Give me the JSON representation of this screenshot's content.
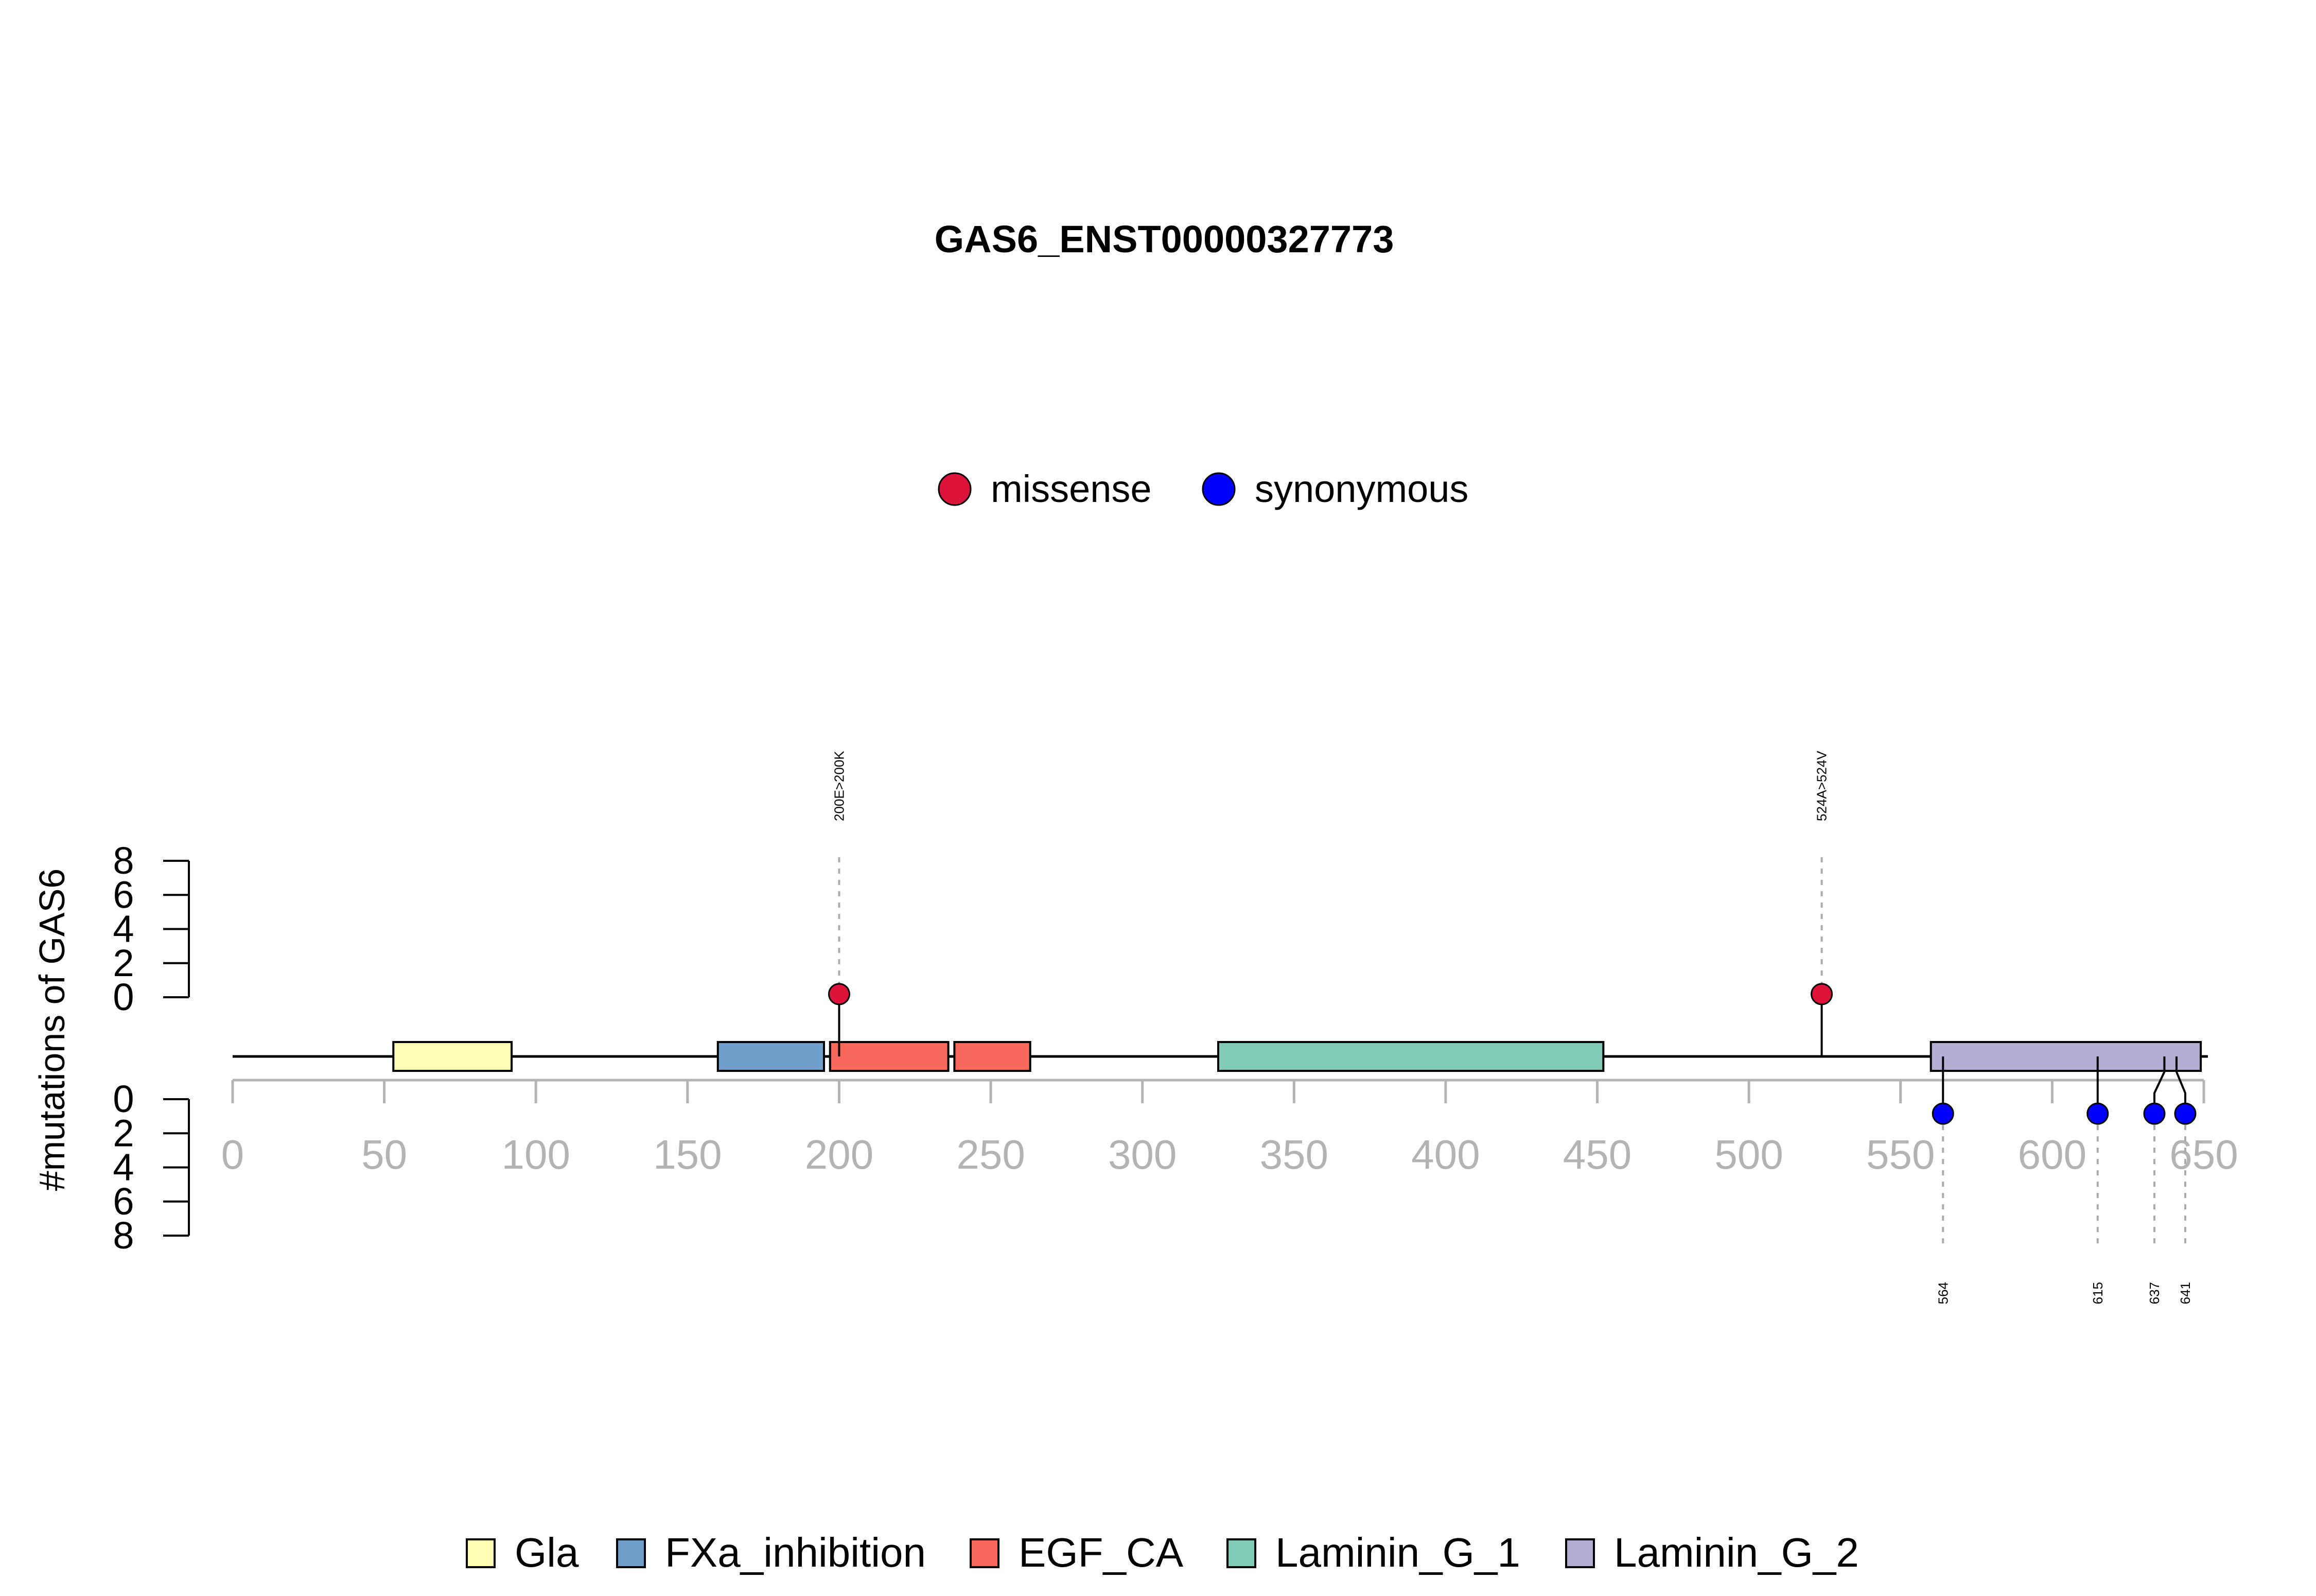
{
  "chart_data": {
    "type": "lollipop",
    "title": "GAS6_ENST00000327773",
    "ylabel": "#mutations of GAS6",
    "xlim": [
      0,
      650
    ],
    "xticks": [
      0,
      50,
      100,
      150,
      200,
      250,
      300,
      350,
      400,
      450,
      500,
      550,
      600,
      650
    ],
    "ylim": [
      0,
      8
    ],
    "yticks": [
      0,
      2,
      4,
      6,
      8
    ],
    "protein_length": 650,
    "mutation_legend": [
      {
        "name": "missense",
        "color": "#DC143C"
      },
      {
        "name": "synonymous",
        "color": "#0000FF"
      }
    ],
    "domain_legend": [
      {
        "name": "Gla",
        "color": "#FFFFB3"
      },
      {
        "name": "FXa_inhibition",
        "color": "#6F9FCB"
      },
      {
        "name": "EGF_CA",
        "color": "#F8675B"
      },
      {
        "name": "Laminin_G_1",
        "color": "#7FCBB7"
      },
      {
        "name": "Laminin_G_2",
        "color": "#B2AED3"
      }
    ],
    "domains": [
      {
        "name": "Gla",
        "start": 53,
        "end": 92
      },
      {
        "name": "FXa_inhibition",
        "start": 160,
        "end": 195
      },
      {
        "name": "EGF_CA",
        "start": 197,
        "end": 236
      },
      {
        "name": "EGF_CA",
        "start": 238,
        "end": 263
      },
      {
        "name": "Laminin_G_1",
        "start": 325,
        "end": 452
      },
      {
        "name": "Laminin_G_2",
        "start": 560,
        "end": 649
      }
    ],
    "mutations": [
      {
        "pos": 200,
        "label": "200E>200K",
        "type": "missense",
        "count": 1,
        "side": "top"
      },
      {
        "pos": 524,
        "label": "524A>524V",
        "type": "missense",
        "count": 1,
        "side": "top"
      },
      {
        "pos": 564,
        "label": "564",
        "type": "synonymous",
        "count": 1,
        "side": "bottom"
      },
      {
        "pos": 615,
        "label": "615",
        "type": "synonymous",
        "count": 1,
        "side": "bottom"
      },
      {
        "pos": 637,
        "label": "637",
        "type": "synonymous",
        "count": 1,
        "side": "bottom"
      },
      {
        "pos": 641,
        "label": "641",
        "type": "synonymous",
        "count": 1,
        "side": "bottom"
      }
    ]
  }
}
